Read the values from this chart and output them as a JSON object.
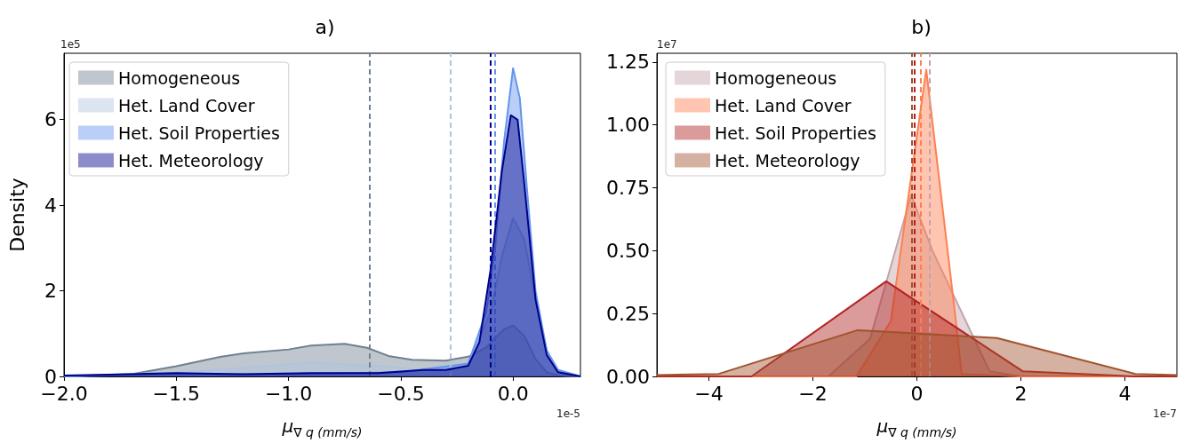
{
  "chart_data": [
    {
      "type": "area",
      "title": "a)",
      "xlabel": "μ$_{∇ q (mm/s)}$",
      "ylabel": "Density",
      "annotations": [
        "1e5",
        "1e-5"
      ],
      "xlim": [
        -2.0,
        0.3
      ],
      "xticks": [
        {
          "value": -2,
          "label": "−2.0"
        },
        {
          "value": -1.5,
          "label": "−1.5"
        },
        {
          "value": -1,
          "label": "−1.0"
        },
        {
          "value": -0.5,
          "label": "−0.5"
        },
        {
          "value": 0,
          "label": "0.0"
        }
      ],
      "ylim": [
        0,
        7.55
      ],
      "yticks": [
        0,
        2,
        4,
        6
      ],
      "grid": false,
      "legend": "top left",
      "line_style": "solid",
      "marker": "none",
      "series": [
        {
          "name": "Homogeneous",
          "color": "#708090",
          "x": [
            -2,
            -1.7,
            -1.5,
            -1.3,
            -1.2,
            -1.0,
            -0.9,
            -0.75,
            -0.65,
            -0.55,
            -0.45,
            -0.3,
            -0.2,
            -0.12,
            -0.08,
            -0.04,
            0,
            0.05,
            0.1,
            0.15,
            0.2,
            0.3
          ],
          "values": [
            0,
            0.05,
            0.24,
            0.46,
            0.54,
            0.63,
            0.72,
            0.76,
            0.67,
            0.47,
            0.39,
            0.37,
            0.46,
            0.67,
            0.9,
            1.1,
            1.19,
            0.95,
            0.4,
            0.1,
            0.02,
            0
          ]
        },
        {
          "name": "Het. Land Cover",
          "color": "#b0c4de",
          "x": [
            -2,
            -1.5,
            -1.2,
            -0.9,
            -0.6,
            -0.4,
            -0.2,
            -0.1,
            -0.05,
            0,
            0.05,
            0.1,
            0.15,
            0.2,
            0.3
          ],
          "values": [
            0,
            0.1,
            0.2,
            0.32,
            0.25,
            0.15,
            0.3,
            1.5,
            2.8,
            3.7,
            3.2,
            1.8,
            0.6,
            0.15,
            0
          ]
        },
        {
          "name": "Het. Soil Properties",
          "color": "#6495ed",
          "x": [
            -2,
            -1.5,
            -1,
            -0.5,
            -0.2,
            -0.12,
            -0.08,
            -0.04,
            0,
            0.03,
            0.06,
            0.1,
            0.15,
            0.2,
            0.3
          ],
          "values": [
            0,
            0.05,
            0.05,
            0.1,
            0.3,
            1.5,
            3,
            5.5,
            7.2,
            6.5,
            4.5,
            2.0,
            0.6,
            0.15,
            0
          ]
        },
        {
          "name": "Het. Meteorology",
          "color": "#00008b",
          "x": [
            -2,
            -1.8,
            -1.5,
            -1.2,
            -0.9,
            -0.6,
            -0.4,
            -0.3,
            -0.2,
            -0.15,
            -0.1,
            -0.05,
            -0.01,
            0.02,
            0.05,
            0.1,
            0.15,
            0.2,
            0.3
          ],
          "values": [
            0.02,
            0.04,
            0.08,
            0.05,
            0.08,
            0.08,
            0.15,
            0.15,
            0.25,
            0.8,
            2.5,
            4.8,
            6.1,
            6.0,
            4.5,
            1.8,
            0.5,
            0.1,
            0
          ]
        }
      ],
      "ref_lines": [
        {
          "axis": "x",
          "value": -0.64,
          "color": "#708090",
          "line_style": "dashed"
        },
        {
          "axis": "x",
          "value": -0.28,
          "color": "#b0c4de",
          "line_style": "dashed"
        },
        {
          "axis": "x",
          "value": -0.08,
          "color": "#6495ed",
          "line_style": "dashed"
        },
        {
          "axis": "x",
          "value": -0.1,
          "color": "#00008b",
          "line_style": "dashed"
        }
      ]
    },
    {
      "type": "area",
      "title": "b)",
      "xlabel": "μ$_{∇ q (mm/s)}$",
      "annotations": [
        "1e7",
        "1e-7"
      ],
      "xlim": [
        -5,
        5
      ],
      "xticks": [
        {
          "value": -4,
          "label": "−4"
        },
        {
          "value": -2,
          "label": "−2"
        },
        0,
        2,
        4
      ],
      "ylim": [
        0,
        1.285
      ],
      "yticks": [
        {
          "value": 0,
          "label": "0.00"
        },
        0.25,
        {
          "value": 0.5,
          "label": "0.50"
        },
        0.75,
        {
          "value": 1,
          "label": "1.00"
        },
        1.25
      ],
      "grid": false,
      "legend": "top left",
      "line_style": "solid",
      "marker": "none",
      "series": [
        {
          "name": "Homogeneous",
          "color": "#c4a4a8",
          "x": [
            -5,
            -1.7,
            -0.9,
            -0.11,
            0.3,
            1.1,
            1.4,
            2.0,
            5
          ],
          "values": [
            0,
            0,
            0.15,
            0.72,
            0.5,
            0.15,
            0.02,
            0,
            0
          ]
        },
        {
          "name": "Het. Land Cover",
          "color": "#ff7f50",
          "x": [
            -5,
            -1.16,
            -0.5,
            0.18,
            0.75,
            0.86,
            2.0,
            5
          ],
          "values": [
            0,
            0,
            0.22,
            1.22,
            0.22,
            0.01,
            0,
            0
          ]
        },
        {
          "name": "Het. Soil Properties",
          "color": "#b22222",
          "x": [
            -5,
            -3.18,
            -0.59,
            2.04,
            4.2,
            5
          ],
          "values": [
            0,
            0,
            0.378,
            0.02,
            0,
            0
          ]
        },
        {
          "name": "Het. Meteorology",
          "color": "#a0522d",
          "x": [
            -5,
            -3.81,
            -1.14,
            1.54,
            4.2,
            5
          ],
          "values": [
            0.005,
            0.01,
            0.184,
            0.153,
            0.01,
            0.005
          ]
        }
      ],
      "ref_lines": [
        {
          "axis": "x",
          "value": 0.25,
          "color": "#c4a4a8",
          "line_style": "dashed"
        },
        {
          "axis": "x",
          "value": 0.07,
          "color": "#ff7f50",
          "line_style": "dashed"
        },
        {
          "axis": "x",
          "value": -0.04,
          "color": "#b22222",
          "line_style": "dashed"
        },
        {
          "axis": "x",
          "value": -0.1,
          "color": "#a0522d",
          "line_style": "dashed"
        }
      ]
    }
  ]
}
